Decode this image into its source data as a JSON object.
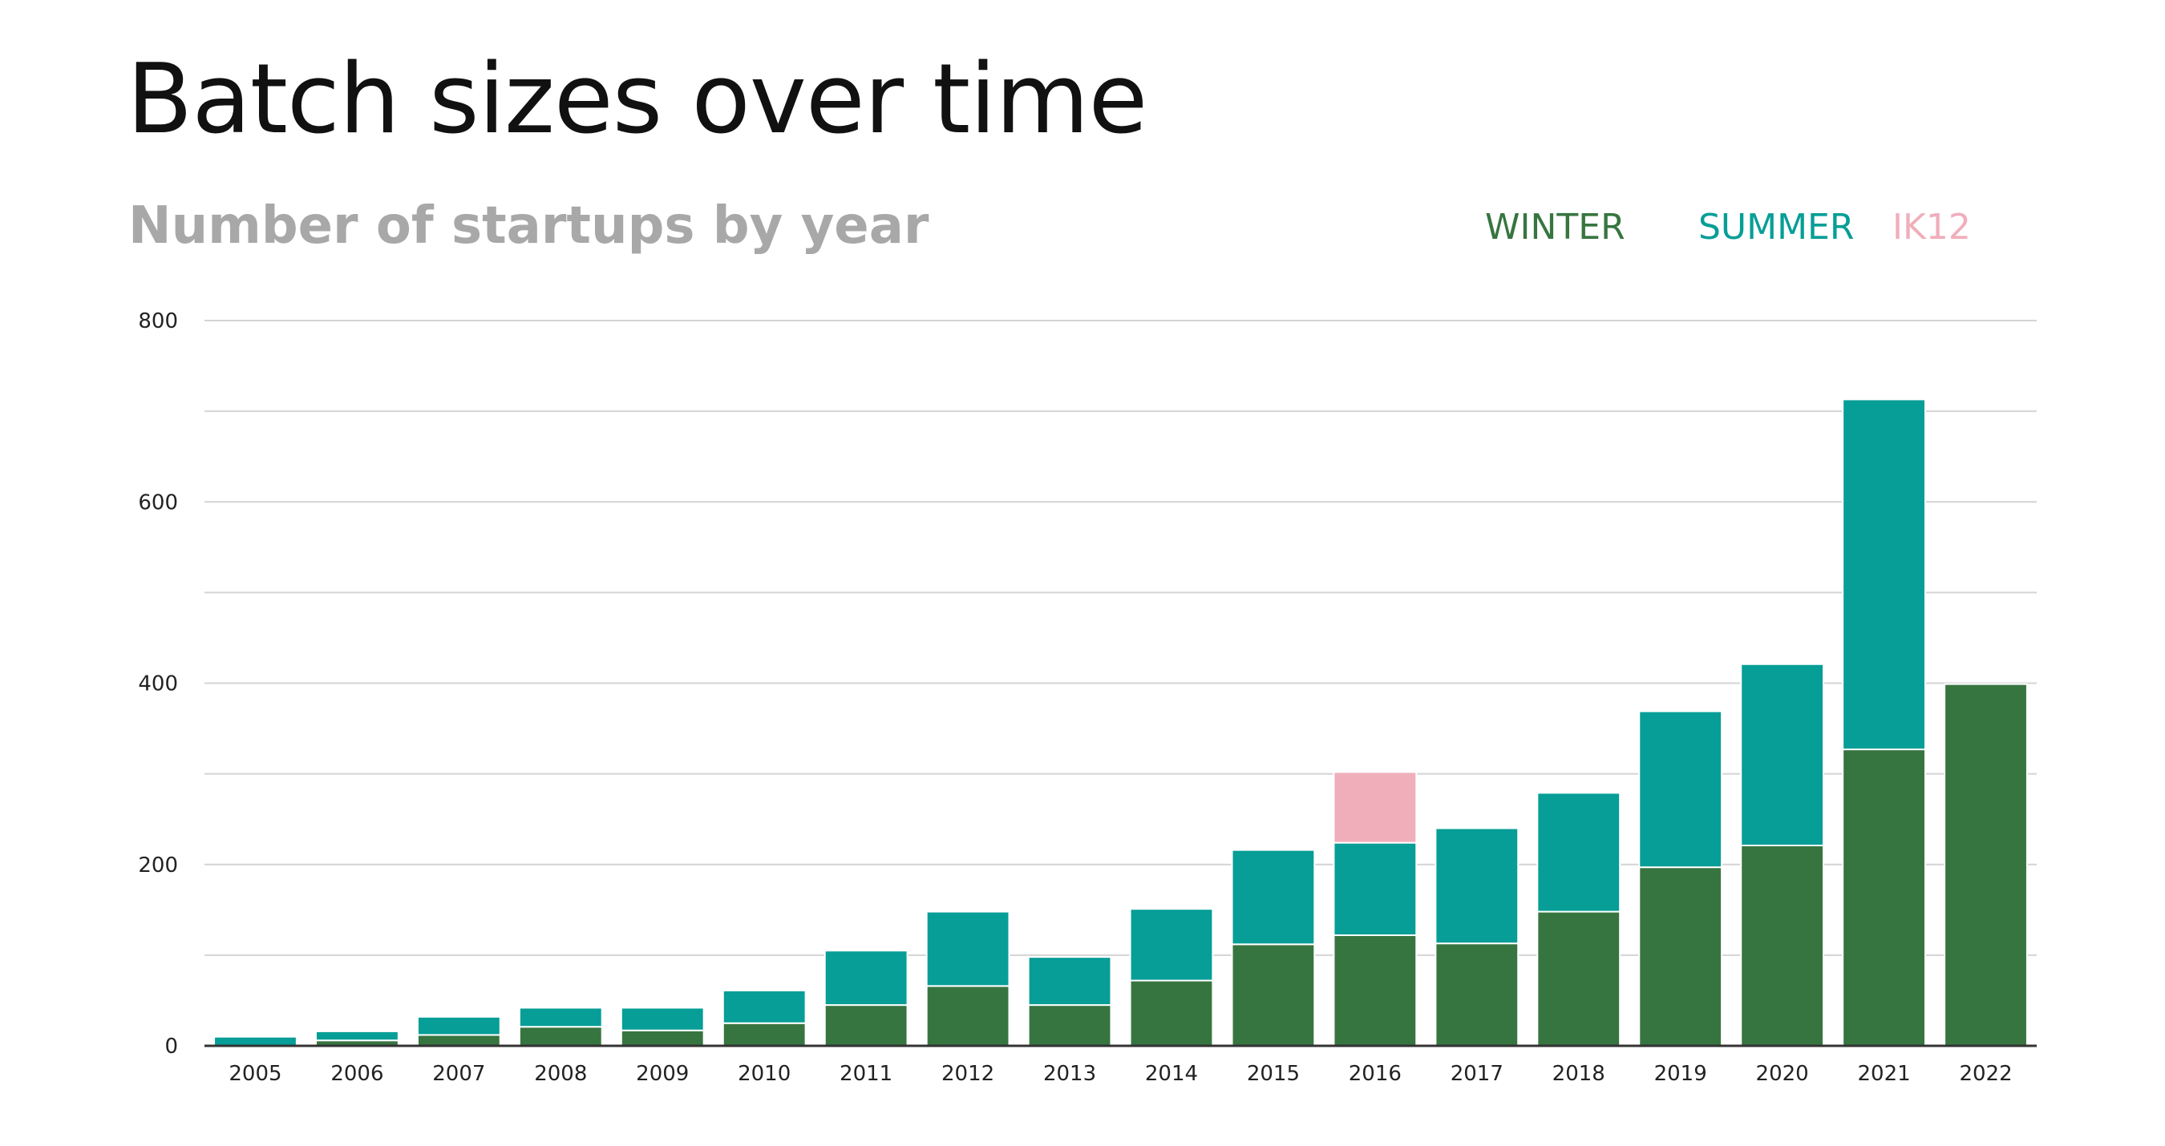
{
  "page": {
    "title": "Batch sizes over time",
    "subtitle": "Number of startups by year"
  },
  "chart_data": {
    "type": "bar",
    "stacked": true,
    "title": "Batch sizes over time",
    "subtitle": "Number of startups by year",
    "xlabel": "",
    "ylabel": "",
    "ylim": [
      0,
      800
    ],
    "yticks": [
      0,
      200,
      400,
      600,
      800
    ],
    "grid": true,
    "legend_position": "top-right",
    "categories": [
      "2005",
      "2006",
      "2007",
      "2008",
      "2009",
      "2010",
      "2011",
      "2012",
      "2013",
      "2014",
      "2015",
      "2016",
      "2017",
      "2018",
      "2019",
      "2020",
      "2021",
      "2022"
    ],
    "series": [
      {
        "name": "WINTER",
        "color": "#377540",
        "values": [
          0,
          6,
          12,
          21,
          17,
          25,
          45,
          66,
          45,
          72,
          112,
          122,
          113,
          148,
          197,
          221,
          327,
          399
        ]
      },
      {
        "name": "SUMMER",
        "color": "#069e97",
        "values": [
          10,
          10,
          20,
          21,
          25,
          36,
          60,
          82,
          53,
          79,
          104,
          102,
          127,
          131,
          172,
          200,
          386,
          0
        ]
      },
      {
        "name": "IK12",
        "color": "#f0aebb",
        "values": [
          0,
          0,
          0,
          0,
          0,
          0,
          0,
          0,
          0,
          0,
          0,
          78,
          0,
          0,
          0,
          0,
          0,
          0
        ]
      }
    ]
  }
}
